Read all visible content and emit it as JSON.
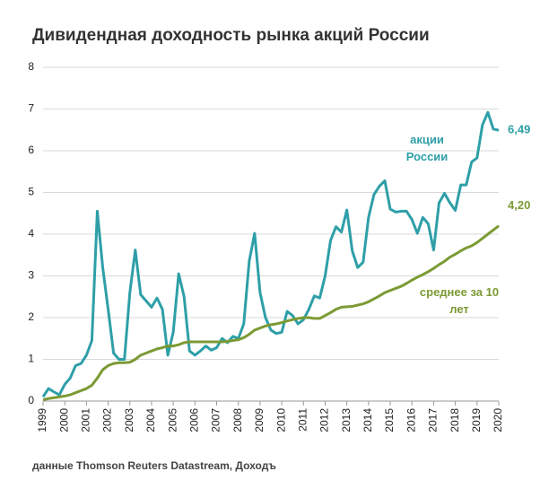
{
  "chart_data": {
    "type": "line",
    "title": "Дивидендная доходность рынка акций России",
    "source": "данные Thomson Reuters Datastream, Доходъ",
    "x": [
      1999,
      1999.25,
      1999.5,
      1999.75,
      2000,
      2000.25,
      2000.5,
      2000.75,
      2001,
      2001.25,
      2001.5,
      2001.75,
      2002,
      2002.25,
      2002.5,
      2002.75,
      2003,
      2003.25,
      2003.5,
      2003.75,
      2004,
      2004.25,
      2004.5,
      2004.75,
      2005,
      2005.25,
      2005.5,
      2005.75,
      2006,
      2006.25,
      2006.5,
      2006.75,
      2007,
      2007.25,
      2007.5,
      2007.75,
      2008,
      2008.25,
      2008.5,
      2008.75,
      2009,
      2009.25,
      2009.5,
      2009.75,
      2010,
      2010.25,
      2010.5,
      2010.75,
      2011,
      2011.25,
      2011.5,
      2011.75,
      2012,
      2012.25,
      2012.5,
      2012.75,
      2013,
      2013.25,
      2013.5,
      2013.75,
      2014,
      2014.25,
      2014.5,
      2014.75,
      2015,
      2015.25,
      2015.5,
      2015.75,
      2016,
      2016.25,
      2016.5,
      2016.75,
      2017,
      2017.25,
      2017.5,
      2017.75,
      2018,
      2018.25,
      2018.5,
      2018.75,
      2019,
      2019.25,
      2019.5,
      2019.75,
      2020
    ],
    "series": [
      {
        "name": "акции России",
        "color": "#2e9fa8",
        "last_label": "6,49",
        "values": [
          0.1,
          0.3,
          0.22,
          0.15,
          0.4,
          0.55,
          0.85,
          0.9,
          1.1,
          1.45,
          4.55,
          3.2,
          2.2,
          1.15,
          1.0,
          1.0,
          2.6,
          3.62,
          2.55,
          2.4,
          2.25,
          2.47,
          2.2,
          1.1,
          1.65,
          3.05,
          2.5,
          1.2,
          1.1,
          1.2,
          1.32,
          1.22,
          1.28,
          1.5,
          1.4,
          1.55,
          1.5,
          1.85,
          3.35,
          4.02,
          2.6,
          2.0,
          1.7,
          1.62,
          1.65,
          2.15,
          2.05,
          1.85,
          1.95,
          2.2,
          2.52,
          2.47,
          3.0,
          3.85,
          4.18,
          4.05,
          4.58,
          3.6,
          3.2,
          3.33,
          4.4,
          4.95,
          5.15,
          5.28,
          4.6,
          4.53,
          4.55,
          4.55,
          4.35,
          4.02,
          4.4,
          4.25,
          3.62,
          4.75,
          4.98,
          4.75,
          4.57,
          5.18,
          5.18,
          5.73,
          5.83,
          6.62,
          6.92,
          6.52,
          6.49
        ]
      },
      {
        "name": "среднее за 10 лет",
        "color": "#7c9a34",
        "last_label": "4,20",
        "values": [
          0.03,
          0.06,
          0.08,
          0.1,
          0.12,
          0.15,
          0.2,
          0.25,
          0.3,
          0.38,
          0.55,
          0.75,
          0.85,
          0.9,
          0.92,
          0.92,
          0.93,
          1.0,
          1.1,
          1.15,
          1.2,
          1.25,
          1.28,
          1.32,
          1.32,
          1.35,
          1.4,
          1.42,
          1.42,
          1.42,
          1.42,
          1.42,
          1.42,
          1.42,
          1.43,
          1.45,
          1.47,
          1.52,
          1.6,
          1.7,
          1.75,
          1.8,
          1.83,
          1.85,
          1.88,
          1.92,
          1.95,
          1.98,
          2.0,
          2.0,
          1.98,
          1.98,
          2.05,
          2.12,
          2.2,
          2.25,
          2.26,
          2.27,
          2.3,
          2.33,
          2.38,
          2.45,
          2.52,
          2.6,
          2.65,
          2.7,
          2.75,
          2.82,
          2.9,
          2.97,
          3.03,
          3.1,
          3.18,
          3.27,
          3.35,
          3.45,
          3.52,
          3.6,
          3.67,
          3.72,
          3.8,
          3.9,
          4.0,
          4.1,
          4.2
        ]
      }
    ],
    "xlim": [
      1999,
      2020
    ],
    "xticks": [
      1999,
      2000,
      2001,
      2002,
      2003,
      2004,
      2005,
      2006,
      2007,
      2008,
      2009,
      2010,
      2011,
      2012,
      2013,
      2014,
      2015,
      2016,
      2017,
      2018,
      2019,
      2020
    ],
    "ylim": [
      0,
      8
    ],
    "yticks": [
      0,
      1,
      2,
      3,
      4,
      5,
      6,
      7,
      8
    ],
    "grid": true
  }
}
